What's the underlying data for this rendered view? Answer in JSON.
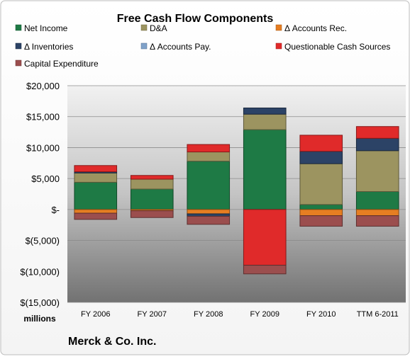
{
  "chart_data": {
    "type": "bar",
    "stacked": true,
    "title": "Free Cash Flow Components",
    "ylabel": "",
    "xlabel": "",
    "unit_label": "millions",
    "footer": "Merck & Co. Inc.",
    "ylim": [
      -15000,
      20000
    ],
    "yticks": [
      {
        "value": 20000,
        "label": "$20,000"
      },
      {
        "value": 15000,
        "label": "$15,000"
      },
      {
        "value": 10000,
        "label": "$10,000"
      },
      {
        "value": 5000,
        "label": "$5,000"
      },
      {
        "value": 0,
        "label": "$-"
      },
      {
        "value": -5000,
        "label": "$(5,000)"
      },
      {
        "value": -10000,
        "label": "$(10,000)"
      },
      {
        "value": -15000,
        "label": "$(15,000)"
      }
    ],
    "grid": true,
    "legend_position": "top",
    "categories": [
      "FY 2006",
      "FY 2007",
      "FY 2008",
      "FY 2009",
      "FY 2010",
      "TTM 6-2011"
    ],
    "series": [
      {
        "name": "Net Income",
        "color": "#1e7a45",
        "values": [
          4400,
          3300,
          7800,
          12900,
          800,
          2900
        ]
      },
      {
        "name": "D&A",
        "color": "#9c9460",
        "values": [
          1500,
          1600,
          1500,
          2500,
          6600,
          6600
        ]
      },
      {
        "name": "Δ Accounts Rec.",
        "color": "#e67e22",
        "values": [
          -600,
          -200,
          -700,
          0,
          -1000,
          -1000
        ]
      },
      {
        "name": "Δ Inventories",
        "color": "#2c4366",
        "values": [
          200,
          0,
          -400,
          1000,
          2000,
          2000
        ]
      },
      {
        "name": "Δ Accounts Pay.",
        "color": "#7fa1c9",
        "values": [
          0,
          0,
          0,
          0,
          0,
          0
        ]
      },
      {
        "name": "Questionable Cash Sources",
        "color": "#e02a2a",
        "values": [
          1000,
          600,
          1200,
          -9000,
          2600,
          1900
        ]
      },
      {
        "name": "Capital Expenditure",
        "color": "#9b4e4e",
        "values": [
          -1000,
          -1100,
          -1300,
          -1400,
          -1700,
          -1700
        ]
      }
    ]
  }
}
